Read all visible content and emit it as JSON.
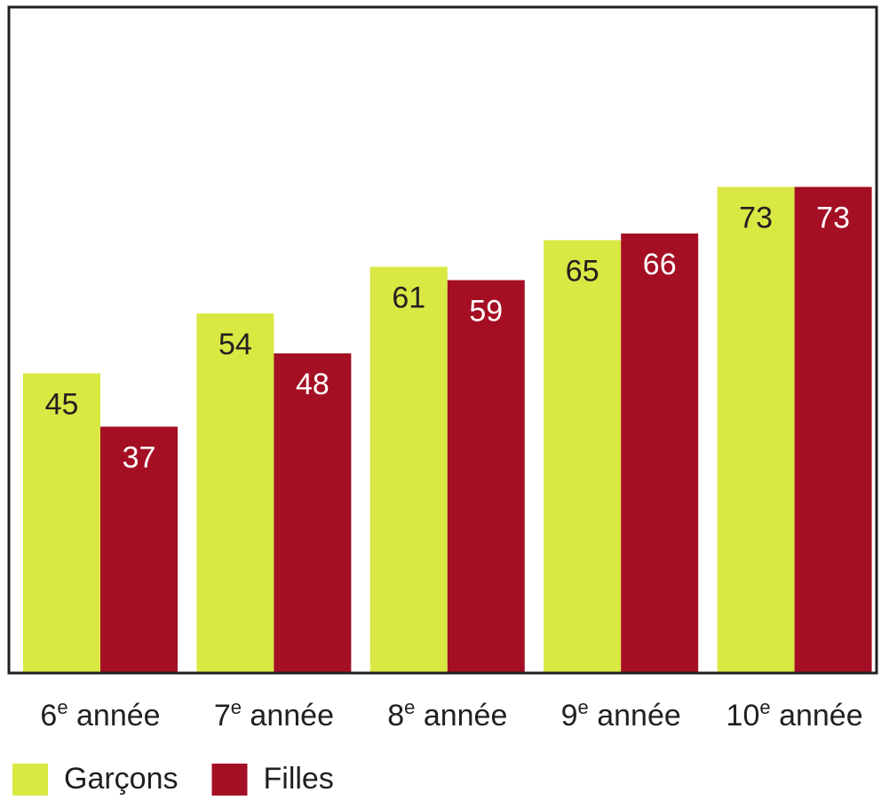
{
  "chart_data": {
    "type": "bar",
    "categories": [
      "6e année",
      "7e année",
      "8e année",
      "9e année",
      "10e année"
    ],
    "series": [
      {
        "name": "Garçons",
        "color": "#d9e843",
        "values": [
          45,
          54,
          61,
          65,
          73
        ]
      },
      {
        "name": "Filles",
        "color": "#a50f24",
        "values": [
          37,
          48,
          59,
          66,
          73
        ]
      }
    ],
    "ylim": [
      0,
      100
    ]
  }
}
